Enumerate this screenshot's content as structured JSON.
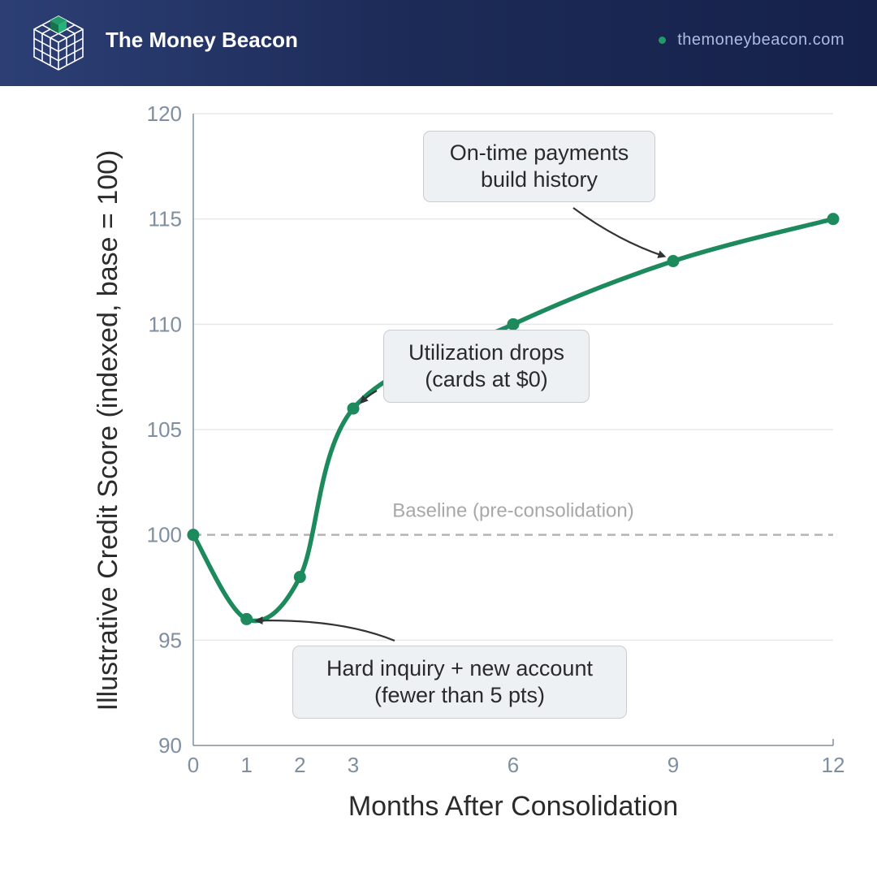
{
  "header": {
    "brand": "The Money Beacon",
    "website": "themoneybeacon.com",
    "logo_icon": "cube-grid-icon",
    "accent_color": "#1f9a68",
    "background_color": "#1d2b58"
  },
  "chart_data": {
    "type": "line",
    "xlabel": "Months After Consolidation",
    "ylabel": "Illustrative Credit Score (indexed, base = 100)",
    "x": [
      0,
      1,
      2,
      3,
      6,
      9,
      12
    ],
    "series": [
      {
        "values": [
          100,
          96,
          98,
          106,
          110,
          113,
          115
        ],
        "color": "#1d8a5e"
      }
    ],
    "xlim": [
      0,
      12
    ],
    "ylim": [
      90,
      120
    ],
    "xticks": [
      0,
      1,
      2,
      3,
      6,
      9,
      12
    ],
    "yticks": [
      90,
      95,
      100,
      105,
      110,
      115,
      120
    ],
    "grid": "horizontal",
    "baseline": {
      "value": 100,
      "label": "Baseline (pre-consolidation)"
    },
    "annotations": [
      {
        "lines": [
          "On-time payments",
          "build history"
        ],
        "target": [
          9,
          113
        ]
      },
      {
        "lines": [
          "Utilization drops",
          "(cards at $0)"
        ],
        "target": [
          3,
          106
        ]
      },
      {
        "lines": [
          "Hard inquiry + new account",
          "(fewer than 5 pts)"
        ],
        "target": [
          1,
          96
        ]
      }
    ]
  }
}
